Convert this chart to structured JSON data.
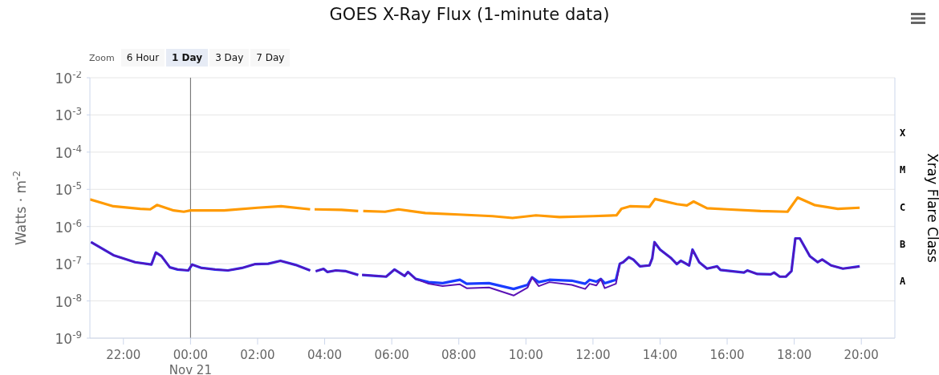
{
  "chart_data": {
    "type": "line",
    "title": "GOES X-Ray Flux (1-minute data)",
    "ylabel": "Watts · m$^{-2}$",
    "y2label": "Xray Flare Class",
    "annotations": [
      "Zoom",
      "6 Hour",
      "1 Day",
      "3 Day",
      "7 Day"
    ],
    "xlim": [
      "--11-20T21:00",
      "--11-21T21:00"
    ],
    "x": [
      "--11-20T21:02",
      "--11-20T21:42",
      "--11-20T22:21",
      "--11-20T22:50",
      "--11-20T22:58",
      "--11-20T23:08",
      "--11-20T23:23",
      "--11-20T23:37",
      "--11-20T23:56",
      "--11-21T00:03",
      "--11-21T00:20",
      "--11-21T00:44",
      "--11-21T01:07",
      "--11-21T01:32",
      "--11-21T01:56",
      "--11-21T02:19",
      "--11-21T02:41",
      "--11-21T03:08",
      "--11-21T03:34",
      "--11-21T03:37",
      "--11-21T03:44",
      "--11-21T03:58",
      "--11-21T04:05",
      "--11-21T04:20",
      "--11-21T04:38",
      "--11-21T05:00",
      "--11-21T05:04",
      "--11-21T05:07",
      "--11-21T05:32",
      "--11-21T05:50",
      "--11-21T06:05",
      "--11-21T06:23",
      "--11-21T06:29",
      "--11-21T06:43",
      "--11-21T07:06",
      "--11-21T07:31",
      "--11-21T08:02",
      "--11-21T08:14",
      "--11-21T08:54",
      "--11-21T09:38",
      "--11-21T10:03",
      "--11-21T10:11",
      "--11-21T10:23",
      "--11-21T10:42",
      "--11-21T11:22",
      "--11-21T11:46",
      "--11-21T11:54",
      "--11-21T12:06",
      "--11-21T12:14",
      "--11-21T12:21",
      "--11-21T12:41",
      "--11-21T12:48",
      "--11-21T12:54",
      "--11-21T13:04",
      "--11-21T13:12",
      "--11-21T13:24",
      "--11-21T13:41",
      "--11-21T13:46",
      "--11-21T13:50",
      "--11-21T14:00",
      "--11-21T14:20",
      "--11-21T14:30",
      "--11-21T14:37",
      "--11-21T14:52",
      "--11-21T14:58",
      "--11-21T15:10",
      "--11-21T15:24",
      "--11-21T15:42",
      "--11-21T15:48",
      "--11-21T16:30",
      "--11-21T16:36",
      "--11-21T16:54",
      "--11-21T17:18",
      "--11-21T17:24",
      "--11-21T17:34",
      "--11-21T17:45",
      "--11-21T17:55",
      "--11-21T18:02",
      "--11-21T18:10",
      "--11-21T18:28",
      "--11-21T18:42",
      "--11-21T18:50",
      "--11-21T19:06",
      "--11-21T19:27",
      "--11-21T19:47",
      "--11-21T19:57"
    ],
    "xticks": [
      {
        "value": "--11-20T22:00",
        "label": "22:00"
      },
      {
        "value": "--11-21T00:00",
        "label": "00:00\nNov 21"
      },
      {
        "value": "--11-21T02:00",
        "label": "02:00"
      },
      {
        "value": "--11-21T04:00",
        "label": "04:00"
      },
      {
        "value": "--11-21T06:00",
        "label": "06:00"
      },
      {
        "value": "--11-21T08:00",
        "label": "08:00"
      },
      {
        "value": "--11-21T10:00",
        "label": "10:00"
      },
      {
        "value": "--11-21T12:00",
        "label": "12:00"
      },
      {
        "value": "--11-21T14:00",
        "label": "14:00"
      },
      {
        "value": "--11-21T16:00",
        "label": "16:00"
      },
      {
        "value": "--11-21T18:00",
        "label": "18:00"
      },
      {
        "value": "--11-21T20:00",
        "label": "20:00"
      }
    ],
    "ylim": [
      1e-09,
      0.01
    ],
    "yticks": [
      {
        "value": 1e-09,
        "label": "10$^{-9}$"
      },
      {
        "value": 1e-08,
        "label": "10$^{-8}$"
      },
      {
        "value": 1e-07,
        "label": "10$^{-7}$"
      },
      {
        "value": 1e-06,
        "label": "10$^{-6}$"
      },
      {
        "value": 1e-05,
        "label": "10$^{-5}$"
      },
      {
        "value": 0.0001,
        "label": "10$^{-4}$"
      },
      {
        "value": 0.001,
        "label": "10$^{-3}$"
      },
      {
        "value": 0.01,
        "label": "10$^{-2}$"
      }
    ],
    "y2_categories": [
      "X",
      "M",
      "C",
      "B",
      "A"
    ],
    "log": true,
    "grid": "y",
    "legend": false,
    "ref_lines": [
      {
        "axis": "x",
        "value": "--11-21T00:00",
        "color": "#666666"
      }
    ],
    "series": [
      {
        "color": "#ff9a00",
        "x": [
          "--11-20T21:00",
          "--11-20T21:42",
          "--11-20T22:30",
          "--11-20T22:48",
          "--11-20T23:00",
          "--11-20T23:30",
          "--11-20T23:48",
          "--11-21T00:00",
          "--11-21T01:00",
          "--11-21T02:00",
          "--11-21T02:42",
          "--11-21T03:34",
          "--11-21T03:37",
          "--11-21T03:42",
          "--11-21T04:30",
          "--11-21T05:00",
          "--11-21T05:04",
          "--11-21T05:09",
          "--11-21T05:48",
          "--11-21T06:12",
          "--11-21T07:00",
          "--11-21T08:00",
          "--11-21T09:00",
          "--11-21T09:36",
          "--11-21T10:18",
          "--11-21T11:00",
          "--11-21T12:00",
          "--11-21T12:42",
          "--11-21T12:51",
          "--11-21T13:06",
          "--11-21T13:41",
          "--11-21T13:51",
          "--11-21T14:30",
          "--11-21T14:48",
          "--11-21T15:00",
          "--11-21T15:24",
          "--11-21T16:00",
          "--11-21T17:00",
          "--11-21T17:48",
          "--11-21T18:06",
          "--11-21T18:36",
          "--11-21T19:18",
          "--11-21T19:57"
        ],
        "values": [
          5.4e-06,
          3.5e-06,
          3e-06,
          2.9e-06,
          3.8e-06,
          2.7e-06,
          2.5e-06,
          2.7e-06,
          2.7e-06,
          3.2e-06,
          3.5e-06,
          2.9e-06,
          null,
          2.9e-06,
          2.8e-06,
          2.6e-06,
          null,
          2.6e-06,
          2.5e-06,
          2.9e-06,
          2.3e-06,
          2.1e-06,
          1.9e-06,
          1.7e-06,
          2e-06,
          1.8e-06,
          1.9e-06,
          2e-06,
          3e-06,
          3.5e-06,
          3.4e-06,
          5.5e-06,
          4e-06,
          3.7e-06,
          4.7e-06,
          3.1e-06,
          2.9e-06,
          2.6e-06,
          2.5e-06,
          6e-06,
          3.8e-06,
          3e-06,
          3.2e-06
        ]
      },
      {
        "color": "#1a3cff",
        "values": [
          3.8e-07,
          1.7e-07,
          1.1e-07,
          9.5e-08,
          2e-07,
          1.6e-07,
          8e-08,
          7e-08,
          6.6e-08,
          9.5e-08,
          7.7e-08,
          7e-08,
          6.6e-08,
          7.7e-08,
          9.8e-08,
          1e-07,
          1.2e-07,
          9.3e-08,
          6.6e-08,
          null,
          6.3e-08,
          7.3e-08,
          6e-08,
          6.6e-08,
          6.3e-08,
          5e-08,
          null,
          5e-08,
          4.7e-08,
          4.5e-08,
          7e-08,
          4.7e-08,
          6e-08,
          3.9e-08,
          3.2e-08,
          3e-08,
          3.7e-08,
          2.9e-08,
          3e-08,
          2.1e-08,
          2.7e-08,
          4.3e-08,
          3.2e-08,
          3.7e-08,
          3.5e-08,
          2.9e-08,
          3.7e-08,
          3.3e-08,
          3.9e-08,
          3e-08,
          3.7e-08,
          1e-07,
          1.1e-07,
          1.5e-07,
          1.3e-07,
          8.5e-08,
          9e-08,
          1.4e-07,
          3.8e-07,
          2.4e-07,
          1.4e-07,
          9.8e-08,
          1.2e-07,
          9e-08,
          2.4e-07,
          1.1e-07,
          7.4e-08,
          8.5e-08,
          6.8e-08,
          5.8e-08,
          6.6e-08,
          5.3e-08,
          5.2e-08,
          5.8e-08,
          4.5e-08,
          4.5e-08,
          6.3e-08,
          4.8e-07,
          4.8e-07,
          1.6e-07,
          1.1e-07,
          1.3e-07,
          9e-08,
          7.4e-08,
          8.1e-08,
          8.5e-08
        ]
      },
      {
        "color": "#5b12b5",
        "values": [
          3.8e-07,
          1.7e-07,
          1.1e-07,
          9.5e-08,
          2e-07,
          1.6e-07,
          8e-08,
          7e-08,
          6.6e-08,
          9.5e-08,
          7.7e-08,
          7e-08,
          6.6e-08,
          7.7e-08,
          9.8e-08,
          1e-07,
          1.2e-07,
          9.3e-08,
          6.6e-08,
          null,
          6.3e-08,
          7.3e-08,
          6e-08,
          6.6e-08,
          6.3e-08,
          5e-08,
          null,
          5e-08,
          4.7e-08,
          4.5e-08,
          7e-08,
          4.7e-08,
          6e-08,
          3.9e-08,
          2.9e-08,
          2.5e-08,
          2.8e-08,
          2.2e-08,
          2.3e-08,
          1.4e-08,
          2.3e-08,
          4.3e-08,
          2.5e-08,
          3.2e-08,
          2.7e-08,
          2.1e-08,
          2.9e-08,
          2.6e-08,
          3.9e-08,
          2.2e-08,
          2.9e-08,
          1e-07,
          1.1e-07,
          1.5e-07,
          1.3e-07,
          8.5e-08,
          9e-08,
          1.4e-07,
          3.8e-07,
          2.4e-07,
          1.4e-07,
          9.8e-08,
          1.2e-07,
          9e-08,
          2.4e-07,
          1.1e-07,
          7.4e-08,
          8.5e-08,
          6.8e-08,
          5.8e-08,
          6.6e-08,
          5.3e-08,
          5.2e-08,
          5.8e-08,
          4.5e-08,
          4.5e-08,
          6.3e-08,
          4.8e-07,
          4.8e-07,
          1.6e-07,
          1.1e-07,
          1.3e-07,
          9e-08,
          7.4e-08,
          8.1e-08,
          8.5e-08
        ]
      }
    ]
  }
}
